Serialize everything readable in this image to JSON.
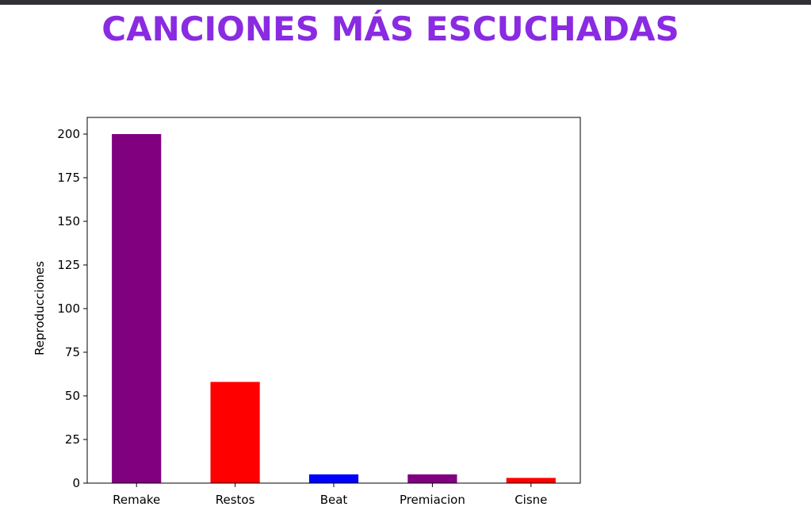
{
  "page": {
    "title": "CANCIONES MÁS ESCUCHADAS"
  },
  "chart_data": {
    "type": "bar",
    "categories": [
      "Remake",
      "Restos",
      "Beat",
      "Premiacion",
      "Cisne"
    ],
    "values": [
      200,
      58,
      5,
      5,
      3
    ],
    "colors": [
      "#800080",
      "#ff0000",
      "#0000ff",
      "#800080",
      "#ff0000"
    ],
    "title": "",
    "xlabel": "",
    "ylabel": "Reproducciones",
    "ylim": [
      0,
      210
    ],
    "yticks": [
      0,
      25,
      50,
      75,
      100,
      125,
      150,
      175,
      200
    ],
    "grid": false
  }
}
